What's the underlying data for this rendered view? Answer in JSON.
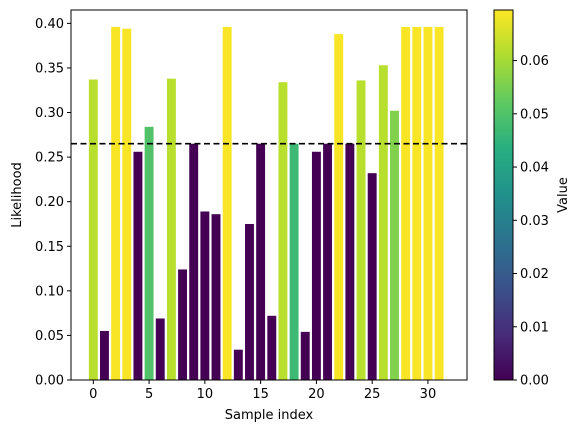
{
  "chart_data": {
    "type": "bar",
    "xlabel": "Sample index",
    "ylabel": "Likelihood",
    "xlim": [
      -2,
      33.5
    ],
    "ylim": [
      0,
      0.415
    ],
    "x_ticks": [
      0,
      5,
      10,
      15,
      20,
      25,
      30
    ],
    "y_ticks": [
      0.0,
      0.05,
      0.1,
      0.15,
      0.2,
      0.25,
      0.3,
      0.35,
      0.4
    ],
    "threshold": 0.265,
    "grid": false,
    "x": [
      0,
      1,
      2,
      3,
      4,
      5,
      6,
      7,
      8,
      9,
      10,
      11,
      12,
      13,
      14,
      15,
      16,
      17,
      18,
      19,
      20,
      21,
      22,
      23,
      24,
      25,
      26,
      27,
      28,
      29,
      30,
      31
    ],
    "values": [
      0.337,
      0.055,
      0.396,
      0.394,
      0.256,
      0.284,
      0.069,
      0.338,
      0.124,
      0.265,
      0.189,
      0.186,
      0.396,
      0.034,
      0.175,
      0.265,
      0.072,
      0.334,
      0.265,
      0.054,
      0.256,
      0.265,
      0.388,
      0.265,
      0.336,
      0.232,
      0.353,
      0.302,
      0.396,
      0.396,
      0.396,
      0.396
    ],
    "color_values": [
      0.062,
      0.0,
      0.069,
      0.069,
      0.0,
      0.05,
      0.0,
      0.062,
      0.0,
      0.0,
      0.0,
      0.0,
      0.069,
      0.0,
      0.0,
      0.0,
      0.0,
      0.062,
      0.047,
      0.0,
      0.0,
      0.0,
      0.069,
      0.0,
      0.062,
      0.0,
      0.062,
      0.056,
      0.069,
      0.069,
      0.069,
      0.069
    ],
    "colorbar": {
      "label": "Value",
      "range": [
        0,
        0.0695
      ],
      "ticks": [
        0.0,
        0.01,
        0.02,
        0.03,
        0.04,
        0.05,
        0.06
      ],
      "colormap": "viridis"
    }
  }
}
